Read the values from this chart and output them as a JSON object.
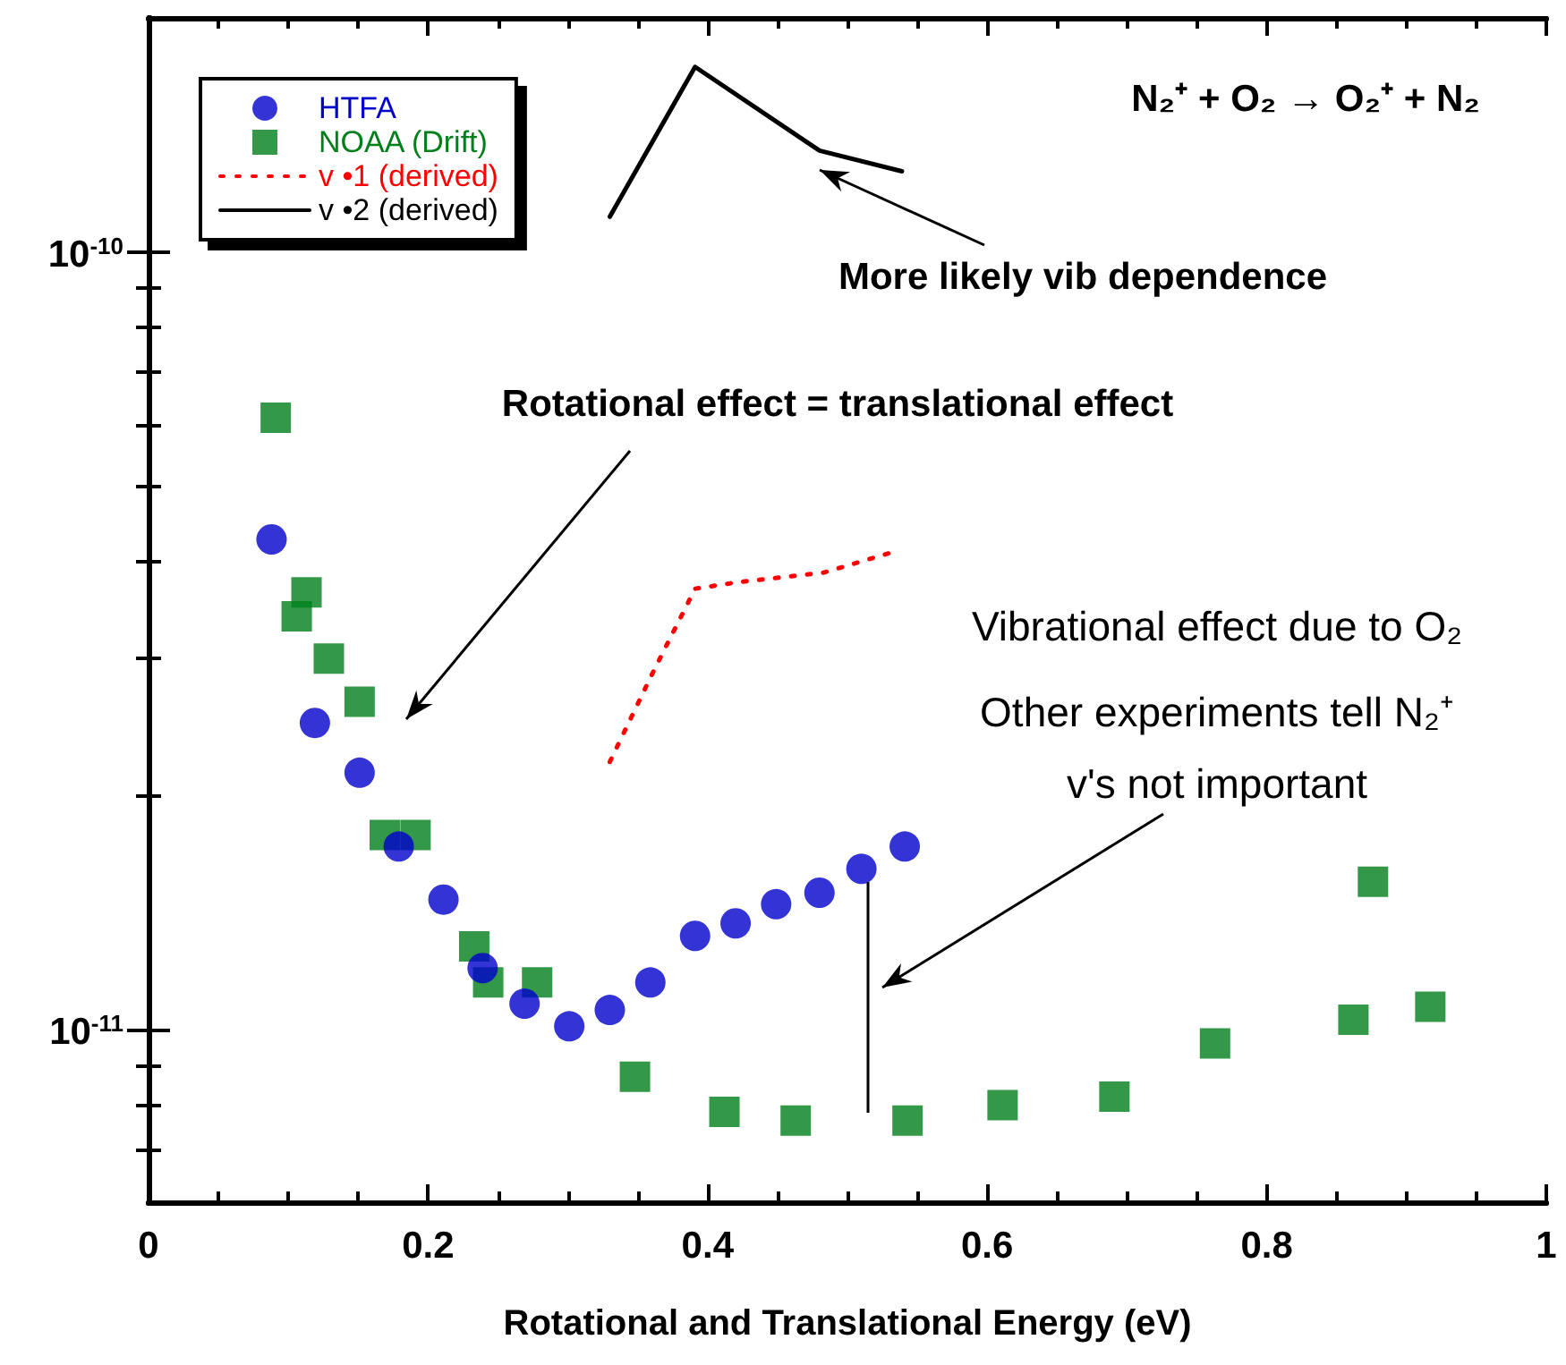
{
  "chart_data": {
    "type": "scatter",
    "title": "N₂⁺ + O₂ → O₂⁺ + N₂",
    "xlabel": "Rotational and Translational Energy (eV)",
    "log": "y",
    "legend": "top left",
    "grid": false,
    "xlim": [
      0,
      1
    ],
    "ylim": [
      6e-12,
      2e-10
    ],
    "xticks": [
      0,
      {
        "value": 0.05,
        "label": null
      },
      {
        "value": 0.1,
        "label": null
      },
      {
        "value": 0.15,
        "label": null
      },
      0.2,
      {
        "value": 0.25,
        "label": null
      },
      {
        "value": 0.3,
        "label": null
      },
      {
        "value": 0.35,
        "label": null
      },
      0.4,
      {
        "value": 0.45,
        "label": null
      },
      {
        "value": 0.5,
        "label": null
      },
      {
        "value": 0.55,
        "label": null
      },
      0.6,
      {
        "value": 0.65,
        "label": null
      },
      {
        "value": 0.7,
        "label": null
      },
      {
        "value": 0.75,
        "label": null
      },
      0.8,
      {
        "value": 0.85,
        "label": null
      },
      {
        "value": 0.9,
        "label": null
      },
      {
        "value": 0.95,
        "label": null
      },
      1
    ],
    "yticks": [
      {
        "value": 7e-12,
        "label": null
      },
      {
        "value": 8e-12,
        "label": null
      },
      {
        "value": 9e-12,
        "label": null
      },
      {
        "value": 1e-11,
        "label": "10$^{-11}$"
      },
      {
        "value": 2e-11,
        "label": null
      },
      {
        "value": 3e-11,
        "label": null
      },
      {
        "value": 4e-11,
        "label": null
      },
      {
        "value": 5e-11,
        "label": null
      },
      {
        "value": 6e-11,
        "label": null
      },
      {
        "value": 7e-11,
        "label": null
      },
      {
        "value": 8e-11,
        "label": null
      },
      {
        "value": 9e-11,
        "label": null
      },
      {
        "value": 1e-10,
        "label": "10$^{-10}$"
      }
    ],
    "series": [
      {
        "name": "HTFA",
        "type": "scatter",
        "marker": "circle",
        "color": "#0000cc",
        "x": [
          0.088,
          0.119,
          0.151,
          0.179,
          0.211,
          0.239,
          0.269,
          0.301,
          0.33,
          0.359,
          0.391,
          0.42,
          0.449,
          0.48,
          0.51,
          0.541
        ],
        "values": [
          4.27e-11,
          2.48e-11,
          2.14e-11,
          1.72e-11,
          1.47e-11,
          1.2e-11,
          1.08e-11,
          1.01e-11,
          1.06e-11,
          1.15e-11,
          1.32e-11,
          1.37e-11,
          1.45e-11,
          1.5e-11,
          1.61e-11,
          1.72e-11
        ]
      },
      {
        "name": "NOAA (Drift)",
        "type": "scatter",
        "marker": "square",
        "color": "#007f1a",
        "x": [
          0.091,
          0.106,
          0.113,
          0.129,
          0.151,
          0.169,
          0.191,
          0.233,
          0.243,
          0.278,
          0.348,
          0.412,
          0.463,
          0.543,
          0.611,
          0.691,
          0.763,
          0.862,
          0.876,
          0.917
        ],
        "values": [
          6.12e-11,
          3.4e-11,
          3.65e-11,
          3e-11,
          2.64e-11,
          1.78e-11,
          1.78e-11,
          1.28e-11,
          1.15e-11,
          1.15e-11,
          8.7e-12,
          7.84e-12,
          7.64e-12,
          7.64e-12,
          8e-12,
          8.2e-12,
          9.6e-12,
          1.03e-11,
          1.55e-11,
          1.07e-11
        ]
      },
      {
        "name": "v •1 (derived)",
        "type": "line",
        "marker": "none",
        "line_style": "dotted",
        "color": "#ff0000",
        "x": [
          0.33,
          0.36,
          0.391,
          0.421,
          0.483,
          0.53
        ],
        "values": [
          2.21e-11,
          2.86e-11,
          3.69e-11,
          3.76e-11,
          3.87e-11,
          4.1e-11
        ]
      },
      {
        "name": "v •2 (derived)",
        "type": "line",
        "marker": "none",
        "line_style": "solid",
        "color": "#000000",
        "x": [
          0.33,
          0.391,
          0.48,
          0.539
        ],
        "values": [
          1.11e-10,
          1.73e-10,
          1.35e-10,
          1.27e-10
        ]
      }
    ],
    "annotations": [
      "More likely vib dependence",
      "Rotational effect = translational effect",
      "Vibrational effect due to O₂",
      "Other experiments tell N₂⁺ v's not important"
    ]
  }
}
